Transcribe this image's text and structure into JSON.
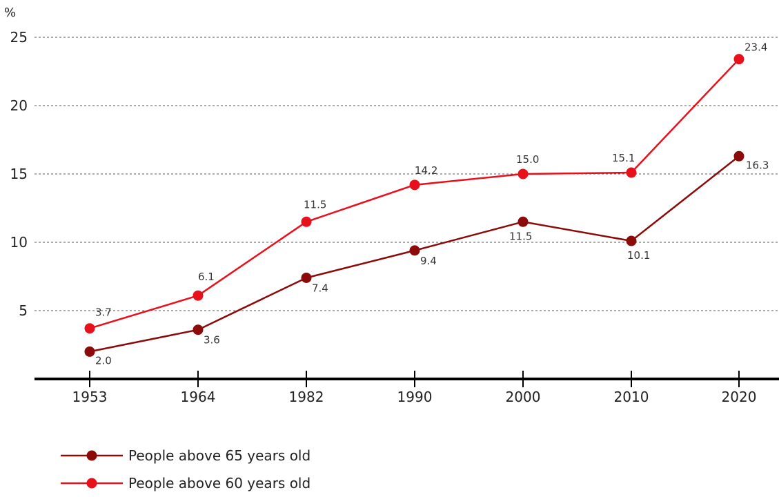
{
  "chart_data": {
    "type": "line",
    "y_unit_label": "%",
    "x": [
      "1953",
      "1964",
      "1982",
      "1990",
      "2000",
      "2010",
      "2020"
    ],
    "yticks": [
      5,
      10,
      15,
      20,
      25
    ],
    "ylim": [
      0,
      25
    ],
    "grid": true,
    "legend_placement": "bottom-left",
    "series": [
      {
        "name": "People above 65 years old",
        "color": "#8b0a0a",
        "values": [
          2.0,
          3.6,
          7.4,
          9.4,
          11.5,
          10.1,
          16.3
        ],
        "labels": [
          "2.0",
          "3.6",
          "7.4",
          "9.4",
          "11.5",
          "10.1",
          "16.3"
        ]
      },
      {
        "name": "People above 60 years old",
        "color": "#e8101a",
        "values": [
          3.7,
          6.1,
          11.5,
          14.2,
          15.0,
          15.1,
          23.4
        ],
        "labels": [
          "3.7",
          "6.1",
          "11.5",
          "14.2",
          "15.0",
          "15.1",
          "23.4"
        ]
      }
    ]
  }
}
